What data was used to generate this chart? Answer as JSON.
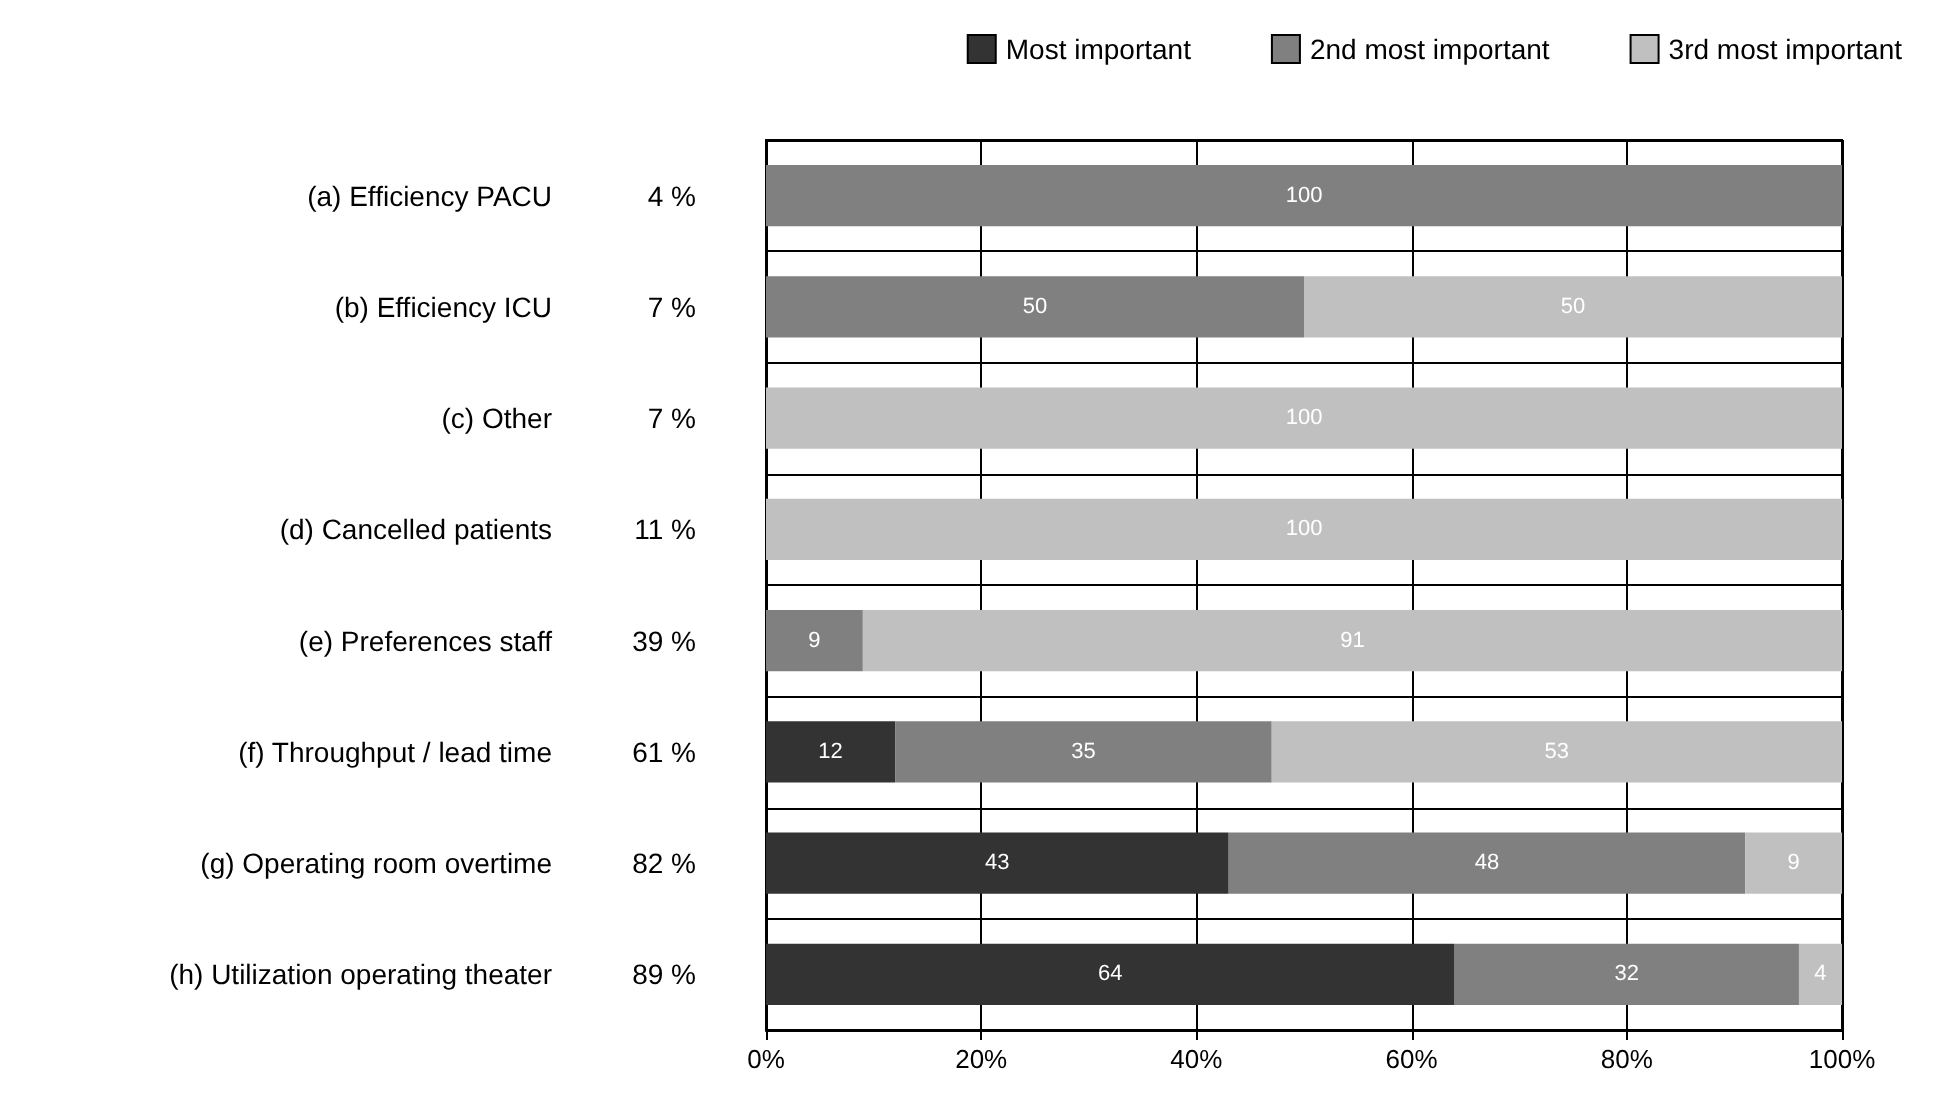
{
  "chart_data": {
    "type": "bar",
    "orientation": "horizontal",
    "stacked": true,
    "data_labels": true,
    "grid": true,
    "legend": "top right",
    "categories": [
      "(a) Efficiency PACU",
      "(b) Efficiency ICU",
      "(c) Other",
      "(d) Cancelled patients",
      "(e) Preferences staff",
      "(f) Throughput / lead time",
      "(g) Operating room overtime",
      "(h) Utilization operating theater"
    ],
    "series": [
      {
        "name": "Most important",
        "color": "#333333",
        "values": [
          null,
          null,
          null,
          null,
          null,
          12,
          43,
          64
        ]
      },
      {
        "name": "2nd most important",
        "color": "#808080",
        "values": [
          100,
          50,
          null,
          null,
          9,
          35,
          48,
          32
        ]
      },
      {
        "name": "3rd most important",
        "color": "#c0c0c0",
        "values": [
          null,
          50,
          100,
          100,
          91,
          53,
          9,
          4
        ]
      }
    ],
    "xlim": [
      0,
      100
    ],
    "xticks": [
      {
        "value": 0,
        "label": "0%"
      },
      {
        "value": 20,
        "label": "20%"
      },
      {
        "value": 40,
        "label": "40%"
      },
      {
        "value": 60,
        "label": "60%"
      },
      {
        "value": 80,
        "label": "80%"
      },
      {
        "value": 100,
        "label": "100%"
      }
    ],
    "annotations": [
      "4 %",
      "7 %",
      "7 %",
      "11 %",
      "39 %",
      "61 %",
      "82 %",
      "89 %"
    ]
  }
}
